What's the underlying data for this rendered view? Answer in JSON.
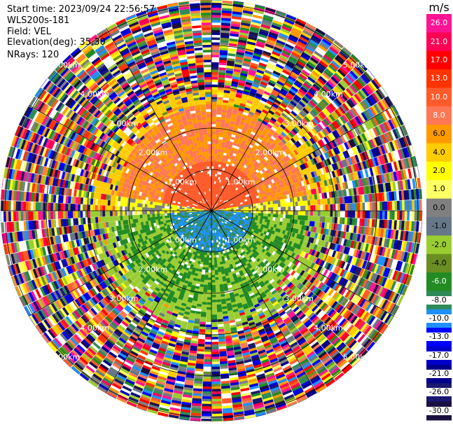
{
  "header": {
    "start_time": "Start time: 2023/09/24 22:56:57",
    "instrument": "WLS200s-181",
    "field": "Field: VEL",
    "elevation": "Elevation(deg): 35.30",
    "nrays": "NRays: 120"
  },
  "ppi": {
    "nrays": 120,
    "range_labels": [
      "1.00km",
      "2.00km",
      "3.00km",
      "4.00km",
      "5.00km"
    ],
    "range_rings_km": [
      1,
      2,
      3,
      4,
      5
    ],
    "max_range_km": 6.4
  },
  "colorbar": {
    "unit": "m/s",
    "tick_labels": [
      "26.0",
      "21.0",
      "17.0",
      "13.0",
      "10.0",
      "8.0",
      "6.0",
      "4.0",
      "2.0",
      "1.0",
      "0.0",
      "-1.0",
      "-2.0",
      "-4.0",
      "-6.0",
      "-8.0",
      "-10.0",
      "-13.0",
      "-17.0",
      "-21.0",
      "-26.0",
      "-30.0"
    ],
    "colors": [
      "#ff1493",
      "#ff0055",
      "#ff0000",
      "#ff3300",
      "#ff5a2a",
      "#ff7755",
      "#ff9900",
      "#ffcc00",
      "#ffff00",
      "#ffff66",
      "#808080",
      "#667788",
      "#9acd32",
      "#6b8e23",
      "#228b22",
      "#2e8b57",
      "#1e90ff",
      "#0000ff",
      "#0000cd",
      "#00008b",
      "#191970",
      "#1a1040"
    ]
  }
}
